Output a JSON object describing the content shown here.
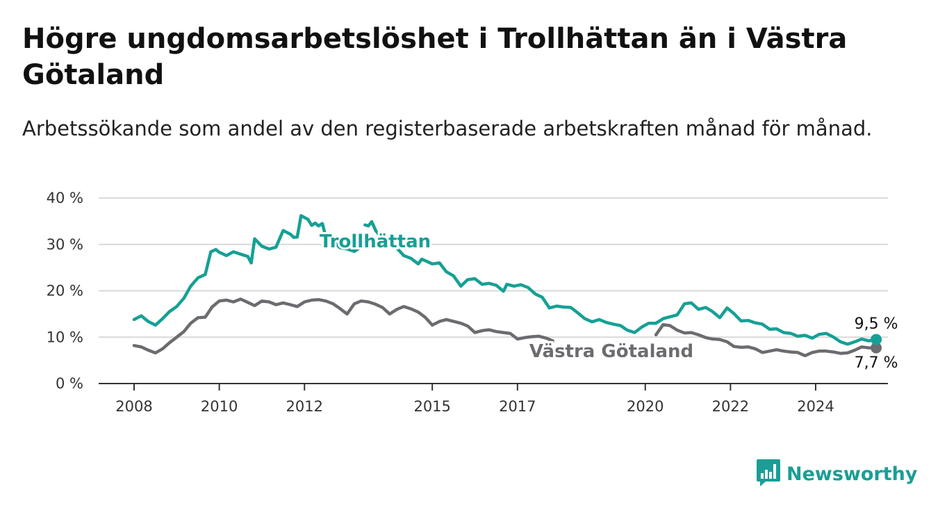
{
  "title": "Högre ungdomsarbetslöshet i Trollhättan än i Västra Götaland",
  "subtitle": "Arbetssökande som andel av den registerbaserade arbetskraften månad för månad.",
  "brand": "Newsworthy",
  "colors": {
    "trollhattan": "#16a095",
    "vastra_gotaland": "#6d6b6f",
    "grid": "#d9d9d9",
    "axis": "#333333"
  },
  "chart_data": {
    "type": "line",
    "xlabel": "",
    "ylabel": "",
    "xlim": [
      2008,
      2025.8
    ],
    "ylim": [
      0,
      40
    ],
    "x_ticks": [
      {
        "value": 2008,
        "label": "2008"
      },
      {
        "value": 2010,
        "label": "2010"
      },
      {
        "value": 2012,
        "label": "2012"
      },
      {
        "value": 2015,
        "label": "2015"
      },
      {
        "value": 2017,
        "label": "2017"
      },
      {
        "value": 2020,
        "label": "2020"
      },
      {
        "value": 2022,
        "label": "2022"
      },
      {
        "value": 2024,
        "label": "2024"
      }
    ],
    "y_ticks": [
      {
        "value": 0,
        "label": "0 %"
      },
      {
        "value": 10,
        "label": "10 %"
      },
      {
        "value": 20,
        "label": "20 %"
      },
      {
        "value": 30,
        "label": "30 %"
      },
      {
        "value": 40,
        "label": "40 %"
      }
    ],
    "grid": true,
    "series": [
      {
        "name": "Trollhättan",
        "end_label": "9,5 %",
        "points": [
          [
            2008.0,
            13.8
          ],
          [
            2008.17,
            14.6
          ],
          [
            2008.33,
            13.4
          ],
          [
            2008.5,
            12.6
          ],
          [
            2008.67,
            14.0
          ],
          [
            2008.83,
            15.5
          ],
          [
            2009.0,
            16.6
          ],
          [
            2009.17,
            18.4
          ],
          [
            2009.33,
            21.0
          ],
          [
            2009.5,
            22.8
          ],
          [
            2009.67,
            23.5
          ],
          [
            2009.8,
            28.4
          ],
          [
            2009.92,
            28.9
          ],
          [
            2010.0,
            28.3
          ],
          [
            2010.17,
            27.6
          ],
          [
            2010.33,
            28.4
          ],
          [
            2010.5,
            27.9
          ],
          [
            2010.67,
            27.4
          ],
          [
            2010.75,
            26.0
          ],
          [
            2010.83,
            31.2
          ],
          [
            2011.0,
            29.6
          ],
          [
            2011.17,
            29.0
          ],
          [
            2011.33,
            29.4
          ],
          [
            2011.5,
            33.0
          ],
          [
            2011.67,
            32.2
          ],
          [
            2011.75,
            31.5
          ],
          [
            2011.83,
            31.6
          ],
          [
            2011.92,
            36.2
          ],
          [
            2012.08,
            35.4
          ],
          [
            2012.17,
            34.1
          ],
          [
            2012.25,
            34.6
          ],
          [
            2012.33,
            34.0
          ],
          [
            2012.42,
            34.5
          ],
          [
            2012.5,
            31.6
          ],
          [
            2012.67,
            30.8
          ],
          [
            2012.83,
            29.3
          ],
          [
            2013.0,
            29.0
          ],
          [
            2013.17,
            28.5
          ],
          [
            2013.3,
            29.3
          ],
          [
            2013.33,
            null
          ],
          [
            2013.42,
            34.2
          ],
          [
            2013.5,
            34.0
          ],
          [
            2013.58,
            34.9
          ],
          [
            2013.67,
            33.0
          ],
          [
            2013.83,
            31.2
          ],
          [
            2014.0,
            30.3
          ],
          [
            2014.17,
            29.2
          ],
          [
            2014.33,
            27.6
          ],
          [
            2014.5,
            27.0
          ],
          [
            2014.67,
            25.8
          ],
          [
            2014.75,
            26.8
          ],
          [
            2014.83,
            26.5
          ],
          [
            2015.0,
            25.8
          ],
          [
            2015.17,
            26.0
          ],
          [
            2015.33,
            24.1
          ],
          [
            2015.5,
            23.2
          ],
          [
            2015.67,
            21.0
          ],
          [
            2015.83,
            22.4
          ],
          [
            2016.0,
            22.6
          ],
          [
            2016.17,
            21.4
          ],
          [
            2016.33,
            21.6
          ],
          [
            2016.5,
            21.2
          ],
          [
            2016.67,
            19.9
          ],
          [
            2016.75,
            21.4
          ],
          [
            2016.92,
            21.0
          ],
          [
            2017.08,
            21.3
          ],
          [
            2017.25,
            20.7
          ],
          [
            2017.42,
            19.3
          ],
          [
            2017.58,
            18.6
          ],
          [
            2017.75,
            16.3
          ],
          [
            2017.92,
            16.7
          ],
          [
            2018.08,
            16.5
          ],
          [
            2018.25,
            16.4
          ],
          [
            2018.42,
            15.2
          ],
          [
            2018.58,
            14.0
          ],
          [
            2018.75,
            13.3
          ],
          [
            2018.92,
            13.8
          ],
          [
            2019.08,
            13.2
          ],
          [
            2019.25,
            12.8
          ],
          [
            2019.42,
            12.5
          ],
          [
            2019.58,
            11.5
          ],
          [
            2019.75,
            11.0
          ],
          [
            2019.92,
            12.2
          ],
          [
            2020.08,
            13.0
          ],
          [
            2020.25,
            13.0
          ],
          [
            2020.42,
            14.0
          ],
          [
            2020.58,
            14.4
          ],
          [
            2020.75,
            14.8
          ],
          [
            2020.92,
            17.2
          ],
          [
            2021.08,
            17.4
          ],
          [
            2021.25,
            16.0
          ],
          [
            2021.42,
            16.4
          ],
          [
            2021.58,
            15.5
          ],
          [
            2021.75,
            14.2
          ],
          [
            2021.92,
            16.3
          ],
          [
            2022.08,
            15.1
          ],
          [
            2022.25,
            13.5
          ],
          [
            2022.42,
            13.6
          ],
          [
            2022.58,
            13.1
          ],
          [
            2022.75,
            12.8
          ],
          [
            2022.92,
            11.7
          ],
          [
            2023.08,
            11.8
          ],
          [
            2023.25,
            11.0
          ],
          [
            2023.42,
            10.8
          ],
          [
            2023.58,
            10.2
          ],
          [
            2023.75,
            10.4
          ],
          [
            2023.92,
            9.8
          ],
          [
            2024.08,
            10.6
          ],
          [
            2024.25,
            10.8
          ],
          [
            2024.42,
            10.0
          ],
          [
            2024.58,
            9.0
          ],
          [
            2024.75,
            8.5
          ],
          [
            2024.92,
            9.0
          ],
          [
            2025.08,
            9.6
          ],
          [
            2025.25,
            9.2
          ],
          [
            2025.42,
            9.5
          ]
        ]
      },
      {
        "name": "Västra Götaland",
        "end_label": "7,7 %",
        "points": [
          [
            2008.0,
            8.2
          ],
          [
            2008.17,
            7.9
          ],
          [
            2008.33,
            7.2
          ],
          [
            2008.5,
            6.6
          ],
          [
            2008.67,
            7.5
          ],
          [
            2008.83,
            8.8
          ],
          [
            2009.0,
            10.0
          ],
          [
            2009.17,
            11.2
          ],
          [
            2009.33,
            13.0
          ],
          [
            2009.5,
            14.2
          ],
          [
            2009.67,
            14.3
          ],
          [
            2009.83,
            16.5
          ],
          [
            2010.0,
            17.8
          ],
          [
            2010.17,
            18.0
          ],
          [
            2010.33,
            17.6
          ],
          [
            2010.5,
            18.2
          ],
          [
            2010.67,
            17.5
          ],
          [
            2010.83,
            16.8
          ],
          [
            2011.0,
            17.8
          ],
          [
            2011.17,
            17.6
          ],
          [
            2011.33,
            17.0
          ],
          [
            2011.5,
            17.4
          ],
          [
            2011.67,
            17.0
          ],
          [
            2011.83,
            16.6
          ],
          [
            2012.0,
            17.6
          ],
          [
            2012.17,
            18.0
          ],
          [
            2012.33,
            18.1
          ],
          [
            2012.5,
            17.8
          ],
          [
            2012.67,
            17.2
          ],
          [
            2012.83,
            16.2
          ],
          [
            2013.0,
            15.0
          ],
          [
            2013.17,
            17.2
          ],
          [
            2013.33,
            17.8
          ],
          [
            2013.5,
            17.6
          ],
          [
            2013.67,
            17.1
          ],
          [
            2013.83,
            16.4
          ],
          [
            2014.0,
            15.0
          ],
          [
            2014.17,
            16.0
          ],
          [
            2014.33,
            16.6
          ],
          [
            2014.5,
            16.1
          ],
          [
            2014.67,
            15.4
          ],
          [
            2014.83,
            14.3
          ],
          [
            2015.0,
            12.6
          ],
          [
            2015.17,
            13.4
          ],
          [
            2015.33,
            13.8
          ],
          [
            2015.5,
            13.4
          ],
          [
            2015.67,
            13.0
          ],
          [
            2015.83,
            12.4
          ],
          [
            2016.0,
            11.0
          ],
          [
            2016.17,
            11.4
          ],
          [
            2016.33,
            11.6
          ],
          [
            2016.5,
            11.2
          ],
          [
            2016.67,
            11.0
          ],
          [
            2016.83,
            10.8
          ],
          [
            2017.0,
            9.6
          ],
          [
            2017.17,
            9.9
          ],
          [
            2017.33,
            10.1
          ],
          [
            2017.5,
            10.2
          ],
          [
            2017.67,
            9.8
          ],
          [
            2017.83,
            9.2
          ],
          [
            2017.9,
            null
          ],
          [
            2020.25,
            10.5
          ],
          [
            2020.42,
            12.7
          ],
          [
            2020.58,
            12.5
          ],
          [
            2020.75,
            11.5
          ],
          [
            2020.92,
            10.9
          ],
          [
            2021.08,
            11.0
          ],
          [
            2021.25,
            10.5
          ],
          [
            2021.42,
            9.9
          ],
          [
            2021.58,
            9.6
          ],
          [
            2021.75,
            9.5
          ],
          [
            2021.92,
            9.0
          ],
          [
            2022.08,
            8.0
          ],
          [
            2022.25,
            7.8
          ],
          [
            2022.42,
            7.9
          ],
          [
            2022.58,
            7.5
          ],
          [
            2022.75,
            6.7
          ],
          [
            2022.92,
            7.0
          ],
          [
            2023.08,
            7.3
          ],
          [
            2023.25,
            7.0
          ],
          [
            2023.42,
            6.8
          ],
          [
            2023.58,
            6.7
          ],
          [
            2023.75,
            6.0
          ],
          [
            2023.92,
            6.7
          ],
          [
            2024.08,
            7.0
          ],
          [
            2024.25,
            7.0
          ],
          [
            2024.42,
            6.8
          ],
          [
            2024.58,
            6.5
          ],
          [
            2024.75,
            6.6
          ],
          [
            2024.92,
            7.2
          ],
          [
            2025.08,
            7.9
          ],
          [
            2025.25,
            7.7
          ],
          [
            2025.42,
            7.7
          ]
        ]
      }
    ],
    "annotations": [
      {
        "text": "Trollhättan",
        "series": "Trollhättan"
      },
      {
        "text": "Västra Götaland",
        "series": "Västra Götaland"
      },
      {
        "text": "9,5 %",
        "series": "Trollhättan"
      },
      {
        "text": "7,7 %",
        "series": "Västra Götaland"
      }
    ]
  }
}
